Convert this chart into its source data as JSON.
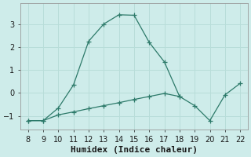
{
  "xlabel": "Humidex (Indice chaleur)",
  "background_color": "#ceecea",
  "line_color": "#2d7a6a",
  "grid_color": "#b8ddd9",
  "curve1_x": [
    8,
    9,
    10,
    11,
    12,
    13,
    14,
    15,
    16,
    17,
    18
  ],
  "curve1_y": [
    -1.2,
    -1.2,
    -0.65,
    0.35,
    2.25,
    3.0,
    3.4,
    3.38,
    2.2,
    1.35,
    -0.15
  ],
  "curve2_x": [
    8,
    9,
    10,
    11,
    12,
    13,
    14,
    15,
    16,
    17,
    18,
    19,
    20,
    21,
    22
  ],
  "curve2_y": [
    -1.2,
    -1.2,
    -0.95,
    -0.82,
    -0.68,
    -0.55,
    -0.42,
    -0.28,
    -0.15,
    -0.02,
    -0.15,
    -0.55,
    -1.2,
    -0.08,
    0.42
  ],
  "xlim": [
    7.5,
    22.5
  ],
  "ylim": [
    -1.6,
    3.9
  ],
  "xticks": [
    8,
    9,
    10,
    11,
    12,
    13,
    14,
    15,
    16,
    17,
    18,
    19,
    20,
    21,
    22
  ],
  "yticks": [
    -1,
    0,
    1,
    2,
    3
  ],
  "fontsize_axis": 8,
  "fontsize_ticks": 7
}
